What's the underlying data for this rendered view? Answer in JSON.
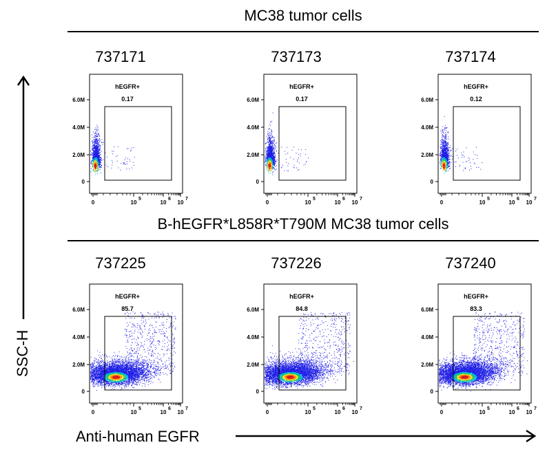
{
  "groups": [
    {
      "title": "MC38 tumor cells"
    },
    {
      "title": "B-hEGFR*L858R*T790M MC38 tumor cells"
    }
  ],
  "axes": {
    "y_label": "SSC-H",
    "x_label": "Anti-human EGFR"
  },
  "chart_data": [
    {
      "type": "scatter",
      "group": "MC38 tumor cells",
      "sample": "737171",
      "gate_label": "hEGFR+",
      "gate_value": "0.17",
      "population": "negative",
      "y_ticks": [
        "0",
        "2.0M",
        "4.0M",
        "6.0M"
      ],
      "x_ticks": [
        "0",
        "10",
        "10",
        "10"
      ],
      "x_tick_exponents": [
        "",
        "5",
        "6",
        "7"
      ]
    },
    {
      "type": "scatter",
      "group": "MC38 tumor cells",
      "sample": "737173",
      "gate_label": "hEGFR+",
      "gate_value": "0.17",
      "population": "negative",
      "y_ticks": [
        "0",
        "2.0M",
        "4.0M",
        "6.0M"
      ],
      "x_ticks": [
        "0",
        "10",
        "10",
        "10"
      ],
      "x_tick_exponents": [
        "",
        "5",
        "6",
        "7"
      ]
    },
    {
      "type": "scatter",
      "group": "MC38 tumor cells",
      "sample": "737174",
      "gate_label": "hEGFR+",
      "gate_value": "0.12",
      "population": "negative",
      "y_ticks": [
        "0",
        "2.0M",
        "4.0M",
        "6.0M"
      ],
      "x_ticks": [
        "0",
        "10",
        "10",
        "10"
      ],
      "x_tick_exponents": [
        "",
        "5",
        "6",
        "7"
      ]
    },
    {
      "type": "scatter",
      "group": "B-hEGFR*L858R*T790M MC38 tumor cells",
      "sample": "737225",
      "gate_label": "hEGFR+",
      "gate_value": "85.7",
      "population": "positive",
      "y_ticks": [
        "0",
        "2.0M",
        "4.0M",
        "6.0M"
      ],
      "x_ticks": [
        "0",
        "10",
        "10",
        "10"
      ],
      "x_tick_exponents": [
        "",
        "5",
        "6",
        "7"
      ]
    },
    {
      "type": "scatter",
      "group": "B-hEGFR*L858R*T790M MC38 tumor cells",
      "sample": "737226",
      "gate_label": "hEGFR+",
      "gate_value": "84.8",
      "population": "positive",
      "y_ticks": [
        "0",
        "2.0M",
        "4.0M",
        "6.0M"
      ],
      "x_ticks": [
        "0",
        "10",
        "10",
        "10"
      ],
      "x_tick_exponents": [
        "",
        "5",
        "6",
        "7"
      ]
    },
    {
      "type": "scatter",
      "group": "B-hEGFR*L858R*T790M MC38 tumor cells",
      "sample": "737240",
      "gate_label": "hEGFR+",
      "gate_value": "83.3",
      "population": "positive",
      "y_ticks": [
        "0",
        "2.0M",
        "4.0M",
        "6.0M"
      ],
      "x_ticks": [
        "0",
        "10",
        "10",
        "10"
      ],
      "x_tick_exponents": [
        "",
        "5",
        "6",
        "7"
      ]
    }
  ]
}
